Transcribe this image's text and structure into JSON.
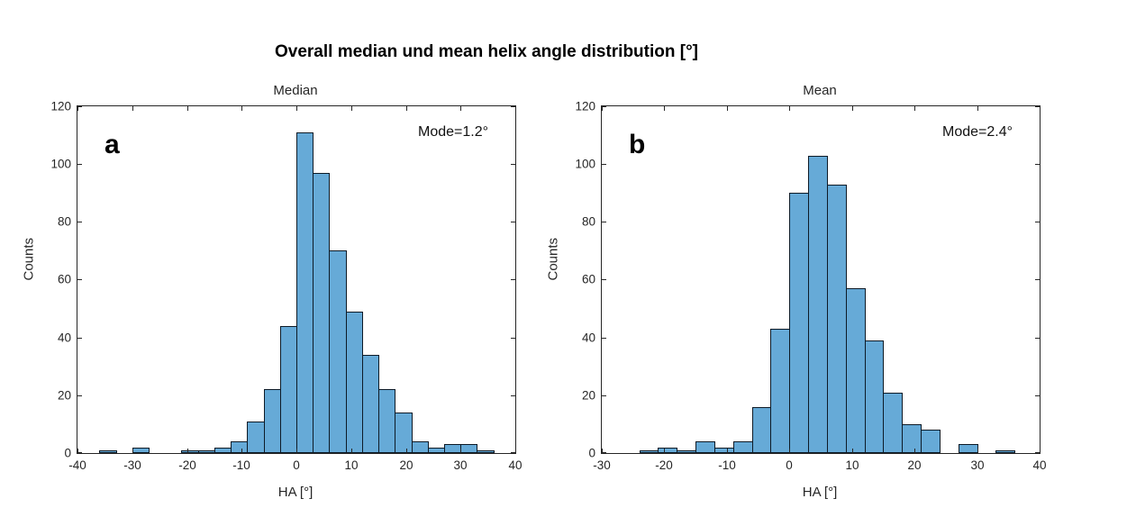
{
  "figure": {
    "title": "Overall median und mean helix angle distribution [°]"
  },
  "style": {
    "bar_fill": "#66aad7",
    "bar_edge": "#0d1a26",
    "axis_color": "#262626",
    "tick_label_color": "#262626"
  },
  "chart_data": [
    {
      "type": "bar",
      "subtype": "histogram",
      "panel_letter": "a",
      "title": "Median",
      "annotation": "Mode=1.2°",
      "xlabel": "HA [°]",
      "ylabel": "Counts",
      "bin_start": -36,
      "bin_width": 3,
      "bin_edges": [
        -36,
        -33,
        -30,
        -27,
        -24,
        -21,
        -18,
        -15,
        -12,
        -9,
        -6,
        -3,
        0,
        3,
        6,
        9,
        12,
        15,
        18,
        21,
        24,
        27,
        30,
        33,
        36
      ],
      "counts": [
        1,
        0,
        2,
        0,
        0,
        1,
        1,
        2,
        4,
        11,
        22,
        44,
        111,
        97,
        70,
        49,
        34,
        22,
        14,
        4,
        2,
        3,
        3,
        1
      ],
      "xlim": [
        -40,
        40
      ],
      "ylim": [
        0,
        120
      ],
      "xticks": [
        -40,
        -30,
        -20,
        -10,
        0,
        10,
        20,
        30,
        40
      ],
      "yticks": [
        0,
        20,
        40,
        60,
        80,
        100,
        120
      ],
      "grid": "off",
      "legend": "none"
    },
    {
      "type": "bar",
      "subtype": "histogram",
      "panel_letter": "b",
      "title": "Mean",
      "annotation": "Mode=2.4°",
      "xlabel": "HA [°]",
      "ylabel": "Counts",
      "bin_start": -24,
      "bin_width": 3,
      "bin_edges": [
        -24,
        -21,
        -18,
        -15,
        -12,
        -9,
        -6,
        -3,
        0,
        3,
        6,
        9,
        12,
        15,
        18,
        21,
        24,
        27,
        30,
        33,
        36
      ],
      "counts": [
        1,
        2,
        1,
        4,
        2,
        4,
        16,
        43,
        90,
        103,
        93,
        57,
        39,
        21,
        10,
        8,
        0,
        3,
        0,
        1
      ],
      "xlim": [
        -30,
        40
      ],
      "ylim": [
        0,
        120
      ],
      "xticks": [
        -30,
        -20,
        -10,
        0,
        10,
        20,
        30,
        40
      ],
      "yticks": [
        0,
        20,
        40,
        60,
        80,
        100,
        120
      ],
      "grid": "off",
      "legend": "none"
    }
  ]
}
